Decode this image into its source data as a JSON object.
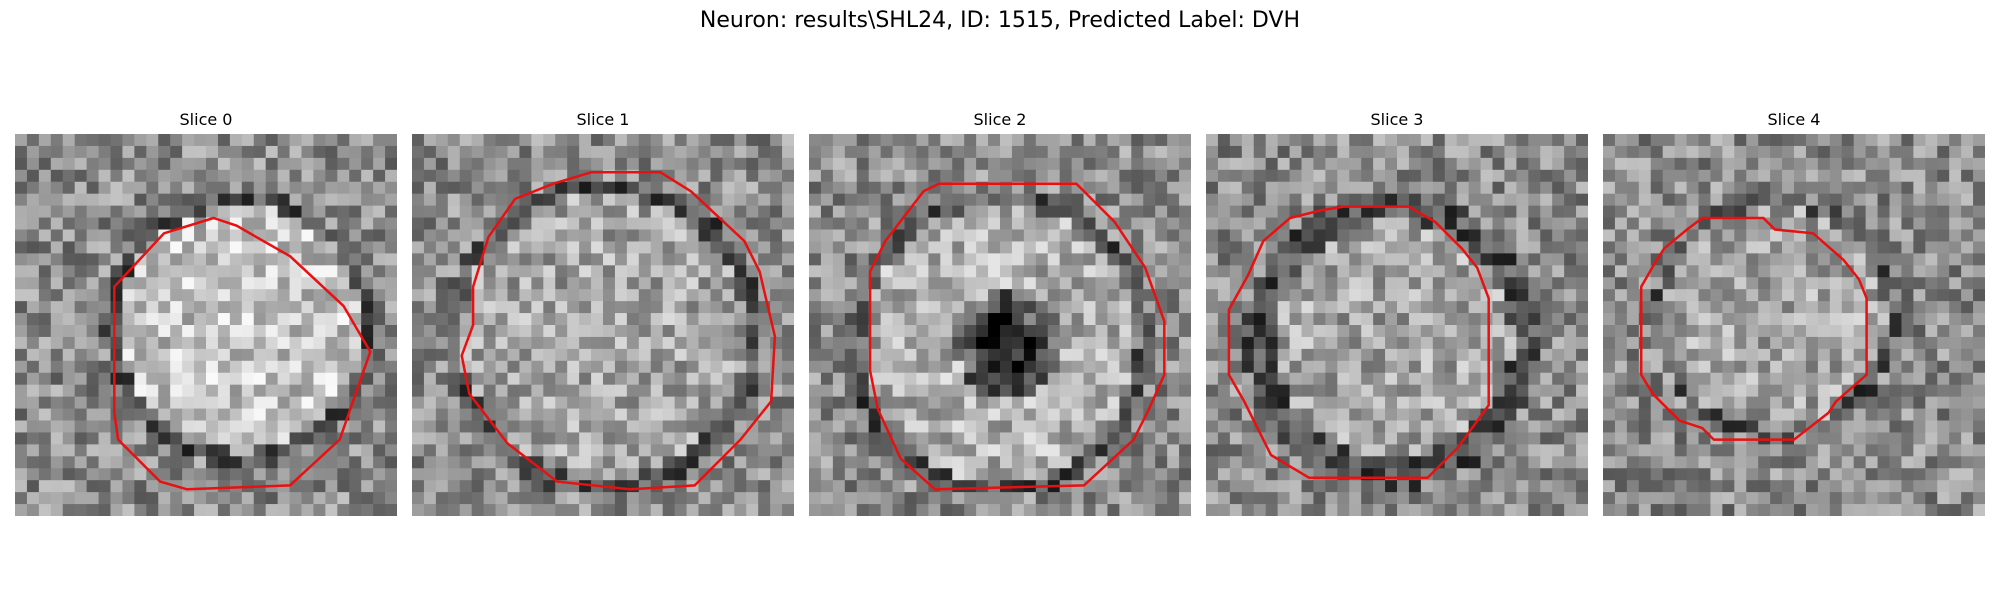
{
  "title": "Neuron: results\\SHL24, ID: 1515, Predicted Label: DVH",
  "slices": [
    {
      "label": "Slice 0"
    },
    {
      "label": "Slice 1"
    },
    {
      "label": "Slice 2"
    },
    {
      "label": "Slice 3"
    },
    {
      "label": "Slice 4"
    }
  ],
  "contour_color": "#e81010"
}
